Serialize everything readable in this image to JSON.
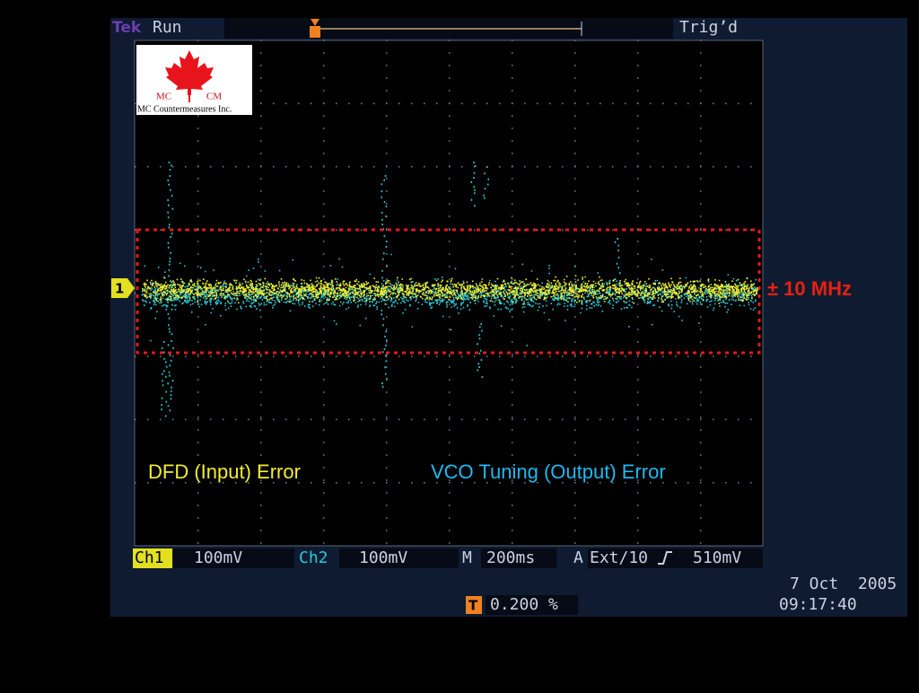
{
  "header": {
    "brand": "Tek",
    "state": "Run",
    "trigger_status": "Trig’d"
  },
  "logo": {
    "left": "MC",
    "right": "CM",
    "company": "MC Countermeasures Inc."
  },
  "screen": {
    "channel_marker": "1",
    "band_label": "± 10 MHz",
    "trace1_label": "DFD (Input) Error",
    "trace2_label": "VCO Tuning (Output) Error"
  },
  "readout": {
    "ch1": "Ch1",
    "ch1_scale": "100mV",
    "ch2": "Ch2",
    "ch2_scale": "100mV",
    "time_prefix": "M",
    "timebase": "200ms",
    "trigger_prefix": "A",
    "trigger_source": "Ext/10",
    "trigger_level": "510mV",
    "trigger_marker": "T",
    "trigger_position": "0.200 %",
    "date": "7 Oct  2005",
    "time": "09:17:40"
  }
}
